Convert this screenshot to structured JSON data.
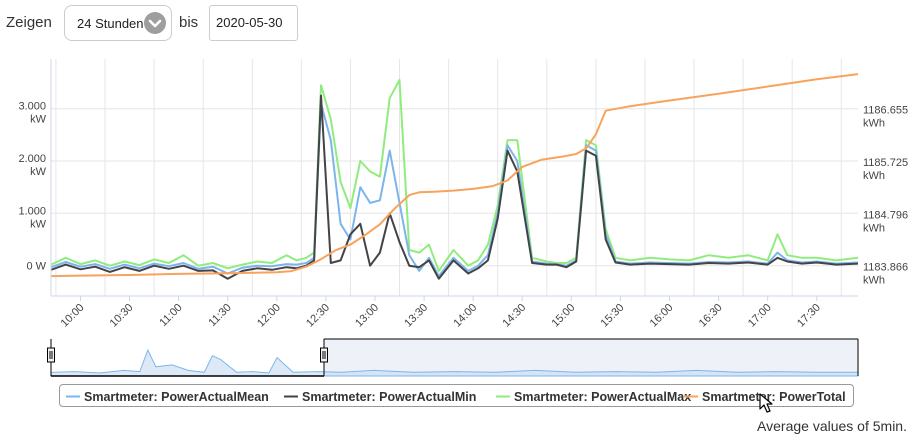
{
  "controls": {
    "show_label": "Zeigen",
    "range_value": "24 Stunden",
    "until_label": "bis",
    "date_value": "2020-05-30"
  },
  "footnote": "Average values of 5min.",
  "colors": {
    "mean": "#7cb5ec",
    "min": "#434348",
    "max": "#90ed7d",
    "total": "#f7a35c"
  },
  "icons": {
    "dropdown": "chevron-down-icon",
    "cursor": "mouse-pointer-icon"
  },
  "chart_data": {
    "type": "line",
    "x_labels": [
      "10:00",
      "10:30",
      "11:00",
      "11:30",
      "12:00",
      "12:30",
      "13:00",
      "13:30",
      "14:00",
      "14:30",
      "15:00",
      "15:30",
      "16:00",
      "16:30",
      "17:00",
      "17:30"
    ],
    "y_left": {
      "ticks": [
        "0 W",
        "1.000 kW",
        "2.000 kW",
        "3.000 kW"
      ],
      "range_w": [
        -580,
        3950
      ]
    },
    "y_right": {
      "ticks": [
        "1183.866 kWh",
        "1184.796 kWh",
        "1185.725 kWh",
        "1186.655 kWh"
      ]
    },
    "x_range": [
      9.7,
      17.92
    ],
    "series": [
      {
        "name": "Smartmeter: PowerActualMean",
        "axis": "left",
        "color": "#7cb5ec",
        "x": [
          9.7,
          9.85,
          10,
          10.15,
          10.3,
          10.45,
          10.6,
          10.75,
          10.9,
          11.05,
          11.2,
          11.35,
          11.5,
          11.65,
          11.8,
          11.95,
          12.1,
          12.2,
          12.3,
          12.38,
          12.45,
          12.55,
          12.65,
          12.75,
          12.85,
          12.95,
          13.05,
          13.15,
          13.25,
          13.35,
          13.45,
          13.55,
          13.65,
          13.8,
          13.95,
          14.05,
          14.15,
          14.25,
          14.35,
          14.45,
          14.6,
          14.75,
          14.85,
          14.95,
          15.05,
          15.15,
          15.25,
          15.35,
          15.45,
          15.6,
          15.8,
          16,
          16.2,
          16.4,
          16.6,
          16.8,
          17,
          17.1,
          17.2,
          17.35,
          17.5,
          17.7,
          17.92
        ],
        "values": [
          -30,
          70,
          -20,
          30,
          -60,
          20,
          -50,
          40,
          -10,
          50,
          -60,
          -20,
          -150,
          -40,
          0,
          -10,
          30,
          20,
          50,
          150,
          3100,
          2400,
          800,
          500,
          1500,
          1200,
          1250,
          2200,
          1200,
          200,
          -100,
          150,
          -200,
          150,
          -100,
          0,
          200,
          1000,
          2300,
          2000,
          80,
          40,
          30,
          0,
          100,
          2300,
          2200,
          600,
          80,
          40,
          60,
          50,
          40,
          70,
          60,
          80,
          40,
          250,
          100,
          60,
          80,
          40,
          60
        ]
      },
      {
        "name": "Smartmeter: PowerActualMin",
        "axis": "left",
        "color": "#434348",
        "x": [
          9.7,
          9.85,
          10,
          10.15,
          10.3,
          10.45,
          10.6,
          10.75,
          10.9,
          11.05,
          11.2,
          11.35,
          11.5,
          11.65,
          11.8,
          11.95,
          12.1,
          12.2,
          12.3,
          12.38,
          12.45,
          12.55,
          12.65,
          12.75,
          12.85,
          12.95,
          13.05,
          13.15,
          13.25,
          13.35,
          13.45,
          13.55,
          13.65,
          13.8,
          13.95,
          14.05,
          14.15,
          14.25,
          14.35,
          14.45,
          14.6,
          14.75,
          14.85,
          14.95,
          15.05,
          15.15,
          15.25,
          15.35,
          15.45,
          15.6,
          15.8,
          16,
          16.2,
          16.4,
          16.6,
          16.8,
          17,
          17.1,
          17.2,
          17.35,
          17.5,
          17.7,
          17.92
        ],
        "values": [
          -80,
          20,
          -70,
          -20,
          -120,
          -30,
          -100,
          0,
          -60,
          0,
          -100,
          -90,
          -250,
          -100,
          -50,
          -80,
          -30,
          -50,
          0,
          100,
          3250,
          50,
          100,
          600,
          800,
          0,
          250,
          1000,
          450,
          0,
          -30,
          100,
          -250,
          100,
          -150,
          -50,
          100,
          900,
          2200,
          1800,
          50,
          20,
          20,
          -30,
          80,
          2200,
          2100,
          500,
          60,
          20,
          40,
          30,
          20,
          50,
          40,
          60,
          20,
          150,
          80,
          40,
          60,
          20,
          40
        ]
      },
      {
        "name": "Smartmeter: PowerActualMax",
        "axis": "left",
        "color": "#90ed7d",
        "x": [
          9.7,
          9.85,
          10,
          10.15,
          10.3,
          10.45,
          10.6,
          10.75,
          10.9,
          11.05,
          11.2,
          11.35,
          11.5,
          11.65,
          11.8,
          11.95,
          12.1,
          12.2,
          12.3,
          12.38,
          12.45,
          12.55,
          12.65,
          12.75,
          12.85,
          12.95,
          13.05,
          13.15,
          13.25,
          13.35,
          13.45,
          13.55,
          13.65,
          13.8,
          13.95,
          14.05,
          14.15,
          14.25,
          14.35,
          14.45,
          14.6,
          14.75,
          14.85,
          14.95,
          15.05,
          15.15,
          15.25,
          15.35,
          15.45,
          15.6,
          15.8,
          16,
          16.2,
          16.4,
          16.6,
          16.8,
          17,
          17.1,
          17.2,
          17.35,
          17.5,
          17.7,
          17.92
        ],
        "values": [
          20,
          150,
          30,
          100,
          0,
          80,
          10,
          120,
          50,
          200,
          0,
          50,
          -50,
          20,
          80,
          50,
          200,
          100,
          150,
          250,
          3450,
          2800,
          1600,
          1100,
          2000,
          1800,
          1700,
          3200,
          3550,
          300,
          250,
          400,
          -100,
          300,
          0,
          100,
          400,
          1150,
          2400,
          2400,
          150,
          80,
          50,
          50,
          150,
          2400,
          2300,
          700,
          150,
          100,
          150,
          120,
          100,
          200,
          150,
          200,
          100,
          600,
          200,
          150,
          150,
          100,
          150
        ]
      },
      {
        "name": "Smartmeter: PowerTotal",
        "axis": "right",
        "color": "#f7a35c",
        "x": [
          9.7,
          10,
          10.5,
          11,
          11.5,
          12,
          12.15,
          12.3,
          12.45,
          12.6,
          12.75,
          12.9,
          13.05,
          13.2,
          13.35,
          13.45,
          13.6,
          13.8,
          14,
          14.2,
          14.35,
          14.5,
          14.7,
          14.9,
          15.05,
          15.15,
          15.25,
          15.35,
          15.6,
          16,
          16.5,
          17,
          17.5,
          17.92
        ],
        "values": [
          1183.68,
          1183.69,
          1183.7,
          1183.72,
          1183.73,
          1183.75,
          1183.77,
          1183.85,
          1183.98,
          1184.14,
          1184.24,
          1184.41,
          1184.6,
          1184.88,
          1185.12,
          1185.17,
          1185.18,
          1185.2,
          1185.23,
          1185.28,
          1185.38,
          1185.62,
          1185.75,
          1185.8,
          1185.85,
          1185.95,
          1186.2,
          1186.62,
          1186.7,
          1186.8,
          1186.92,
          1187.05,
          1187.18,
          1187.27
        ]
      }
    ],
    "navigator": {
      "x": [
        0,
        0.03,
        0.06,
        0.09,
        0.11,
        0.12,
        0.13,
        0.15,
        0.17,
        0.19,
        0.2,
        0.21,
        0.23,
        0.25,
        0.27,
        0.28,
        0.3,
        0.33,
        0.36,
        0.4,
        0.45,
        0.5,
        0.55,
        0.6,
        0.65,
        0.7,
        0.75,
        0.8,
        0.85,
        0.9,
        0.95,
        1
      ],
      "values": [
        0.1,
        0.12,
        0.08,
        0.15,
        0.12,
        0.7,
        0.25,
        0.3,
        0.15,
        0.1,
        0.55,
        0.45,
        0.1,
        0.12,
        0.08,
        0.5,
        0.1,
        0.12,
        0.1,
        0.15,
        0.1,
        0.12,
        0.1,
        0.15,
        0.1,
        0.12,
        0.1,
        0.15,
        0.1,
        0.12,
        0.1,
        0.1
      ]
    }
  }
}
